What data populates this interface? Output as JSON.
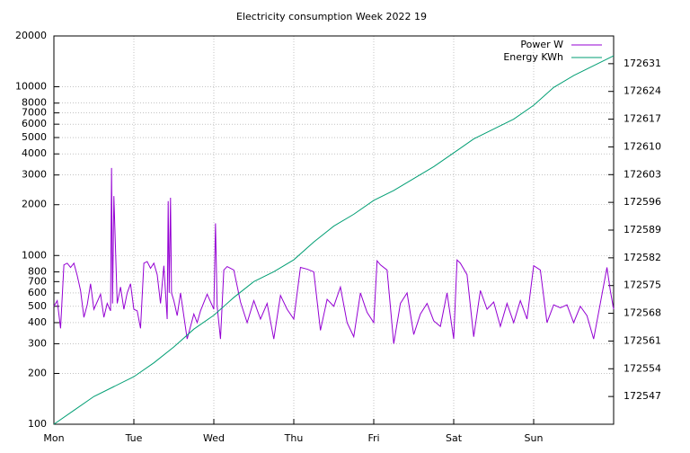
{
  "chart_data": {
    "type": "line",
    "title": "Electricity consumption Week 2022 19",
    "log_y": true,
    "grid": true,
    "legend": "top-right",
    "xlim": [
      0,
      168
    ],
    "xticks": [
      {
        "value": 0,
        "label": "Mon"
      },
      {
        "value": 24,
        "label": "Tue"
      },
      {
        "value": 48,
        "label": "Wed"
      },
      {
        "value": 72,
        "label": "Thu"
      },
      {
        "value": 96,
        "label": "Fri"
      },
      {
        "value": 120,
        "label": "Sat"
      },
      {
        "value": 144,
        "label": "Sun"
      }
    ],
    "ylim": [
      100,
      20000
    ],
    "yticks": [
      100,
      200,
      300,
      400,
      500,
      600,
      700,
      800,
      1000,
      2000,
      3000,
      4000,
      5000,
      6000,
      7000,
      8000,
      10000,
      20000
    ],
    "y2lim": [
      172540,
      172638
    ],
    "y2ticks": [
      172547,
      172554,
      172561,
      172568,
      172575,
      172582,
      172589,
      172596,
      172603,
      172610,
      172617,
      172624,
      172631
    ],
    "series": [
      {
        "name": "Power W",
        "color": "#9400d3",
        "axis": "y",
        "x": [
          0,
          1,
          2,
          3,
          4,
          5,
          6,
          7,
          8,
          9,
          10,
          11,
          12,
          14,
          15,
          16,
          17,
          17.3,
          17.6,
          18,
          19,
          20,
          21,
          22,
          23,
          24,
          25,
          26,
          27,
          28,
          29,
          30,
          31,
          32,
          33,
          34,
          34.3,
          34.6,
          35,
          35.3,
          36,
          37,
          38,
          40,
          42,
          43,
          44,
          46,
          48,
          48.5,
          49,
          50,
          51,
          52,
          54,
          56,
          58,
          60,
          62,
          64,
          66,
          68,
          70,
          72,
          74,
          76,
          78,
          80,
          82,
          84,
          86,
          88,
          90,
          92,
          94,
          96,
          97,
          98,
          100,
          102,
          104,
          106,
          108,
          110,
          112,
          114,
          116,
          118,
          120,
          121,
          122,
          124,
          126,
          128,
          130,
          132,
          134,
          136,
          138,
          140,
          142,
          144,
          146,
          148,
          150,
          152,
          154,
          156,
          158,
          160,
          162,
          164,
          166,
          167,
          168
        ],
        "values": [
          500,
          540,
          370,
          880,
          900,
          850,
          900,
          760,
          620,
          430,
          510,
          680,
          480,
          590,
          430,
          520,
          470,
          3300,
          520,
          2250,
          520,
          650,
          480,
          600,
          680,
          480,
          470,
          370,
          900,
          920,
          840,
          900,
          770,
          520,
          870,
          420,
          2100,
          600,
          2200,
          600,
          540,
          440,
          600,
          320,
          450,
          400,
          470,
          590,
          480,
          1550,
          500,
          320,
          820,
          860,
          820,
          530,
          400,
          540,
          420,
          520,
          320,
          580,
          480,
          420,
          850,
          830,
          800,
          360,
          550,
          500,
          650,
          400,
          330,
          600,
          460,
          400,
          930,
          880,
          820,
          300,
          520,
          600,
          340,
          450,
          520,
          410,
          380,
          600,
          320,
          940,
          900,
          770,
          330,
          620,
          480,
          530,
          380,
          520,
          400,
          540,
          420,
          870,
          820,
          400,
          510,
          490,
          510,
          400,
          500,
          440,
          320,
          520,
          850,
          620,
          480
        ]
      },
      {
        "name": "Energy KWh",
        "color": "#009e73",
        "axis": "y2",
        "x": [
          0,
          6,
          12,
          18,
          24,
          30,
          36,
          42,
          48,
          54,
          60,
          66,
          72,
          78,
          84,
          90,
          96,
          102,
          108,
          114,
          120,
          126,
          132,
          138,
          144,
          150,
          156,
          162,
          168
        ],
        "values": [
          172540.0,
          172543.5,
          172547,
          172549.5,
          172552,
          172555.5,
          172559.5,
          172564,
          172567.5,
          172572,
          172576,
          172578.5,
          172581.5,
          172586,
          172590,
          172593,
          172596.5,
          172599,
          172602,
          172605,
          172608.5,
          172612,
          172614.5,
          172617,
          172620.5,
          172625,
          172628,
          172630.5,
          172633
        ]
      }
    ]
  }
}
